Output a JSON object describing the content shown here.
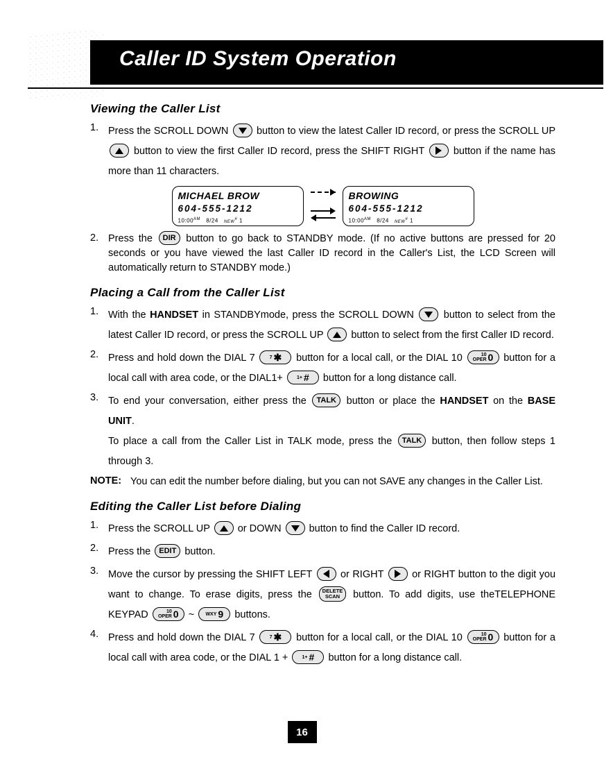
{
  "page_number": "16",
  "title": "Caller ID System Operation",
  "sections": {
    "viewing": {
      "heading": "Viewing the Caller List",
      "items": [
        "Press the SCROLL DOWN {down} button to view the latest Caller ID record, or press the SCROLL UP {up} button to view the first Caller ID record, press the SHIFT RIGHT {right} button if the name has more than 11 characters.",
        "Press the {dir} button to go back to STANDBY mode. (If no active buttons are pressed for 20 seconds or you have viewed the last Caller ID record in the Caller's List, the LCD Screen will automatically return to STANDBY mode.)"
      ]
    },
    "placing": {
      "heading": "Placing a Call from the Caller List",
      "items": [
        "With the <b>HANDSET</b> in STANDBYmode, press the SCROLL DOWN {down} button to select from the latest Caller ID record, or press the SCROLL UP {up} button to select from the first Caller ID record.",
        "Press and hold down the DIAL 7 {k7} button for a local call, or the DIAL 10 {k0} button for a local call with area code, or the DIAL1+ {k1} button for a long distance call.",
        "To end your conversation, either press the {talk} button or place the <b>HANDSET</b> on the <b>BASE UNIT</b>."
      ],
      "tail": "To place a call from the Caller List in TALK mode, press the {talk} button, then follow steps 1 through 3.",
      "note_label": "NOTE",
      "note": "You can edit the number before dialing, but you can not SAVE any changes in the Caller List."
    },
    "editing": {
      "heading": "Editing the Caller List before Dialing",
      "items": [
        "Press the SCROLL UP {up} or DOWN {down} button to find the Caller ID record.",
        "Press the {edit} button.",
        "Move the cursor by pressing the SHIFT LEFT {left} or RIGHT {right} or RIGHT button to the digit you want to change. To erase digits, press the {delscan} button. To add digits, use theTELEPHONE KEYPAD {k0} ~ {k9} buttons.",
        "Press and hold down the DIAL 7 {k7} button for a local call, or the DIAL 10 {k0} button for a local call with area code, or the DIAL 1 + {k1} button for a long distance call."
      ]
    }
  },
  "buttons": {
    "dir": "DIR",
    "talk": "TALK",
    "edit": "EDIT",
    "delscan_top": "DELETE",
    "delscan_bot": "SCAN",
    "k7_pre": "7",
    "k7_big": "★",
    "k0_pre1": "10",
    "k0_pre2": "OPER",
    "k0_big": "0",
    "k1_pre": "1+",
    "k1_big": "#",
    "k9_pre": "WXY",
    "k9_big": "9"
  },
  "lcd": {
    "left": {
      "name": "MICHAEL BROW",
      "number": "604-555-1212",
      "time": "10:00",
      "ampm": "AM",
      "date": "8/24",
      "new": "NEW",
      "hash": "#",
      "count": "1"
    },
    "right": {
      "name": "BROWING",
      "number": "604-555-1212",
      "time": "10:00",
      "ampm": "AM",
      "date": "8/24",
      "new": "NEW",
      "hash": "#",
      "count": "1"
    }
  },
  "colors": {
    "black": "#000000",
    "button_bg": "#e8e8e8",
    "decor": "#bbbbbb"
  }
}
